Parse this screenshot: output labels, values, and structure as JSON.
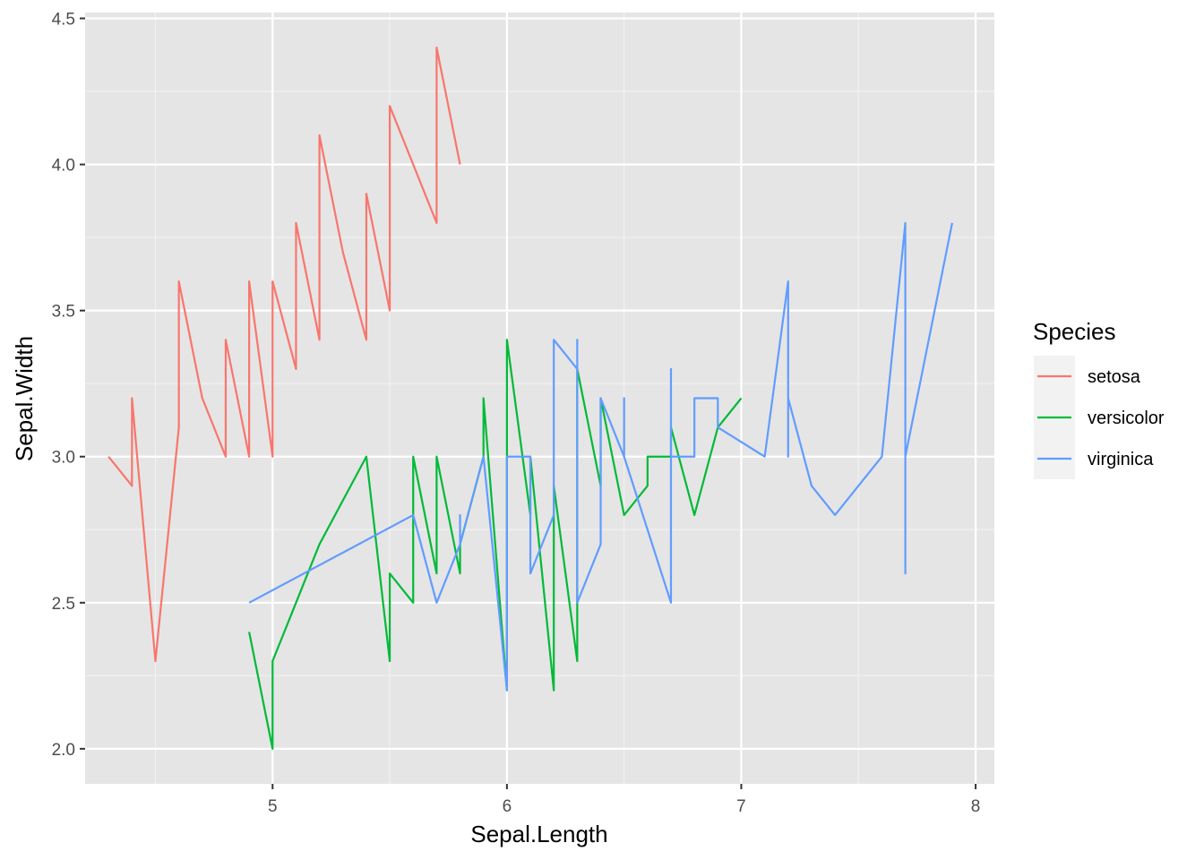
{
  "chart_data": {
    "type": "line",
    "title": "",
    "xlabel": "Sepal.Length",
    "ylabel": "Sepal.Width",
    "xlim": [
      4.2,
      8.08
    ],
    "ylim": [
      1.88,
      4.52
    ],
    "x_ticks": [
      5,
      6,
      7,
      8
    ],
    "x_tick_labels": [
      "5",
      "6",
      "7",
      "8"
    ],
    "y_ticks": [
      2.0,
      2.5,
      3.0,
      3.5,
      4.0,
      4.5
    ],
    "y_tick_labels": [
      "2.0",
      "2.5",
      "3.0",
      "3.5",
      "4.0",
      "4.5"
    ],
    "grid": true,
    "background": "#e5e5e5",
    "legend": {
      "title": "Species",
      "position": "right"
    },
    "series": [
      {
        "name": "setosa",
        "color": "#f8766d",
        "points": [
          [
            4.3,
            3.0
          ],
          [
            4.4,
            2.9
          ],
          [
            4.4,
            3.0
          ],
          [
            4.4,
            3.2
          ],
          [
            4.5,
            2.3
          ],
          [
            4.6,
            3.1
          ],
          [
            4.6,
            3.2
          ],
          [
            4.6,
            3.4
          ],
          [
            4.6,
            3.6
          ],
          [
            4.7,
            3.2
          ],
          [
            4.7,
            3.2
          ],
          [
            4.8,
            3.0
          ],
          [
            4.8,
            3.0
          ],
          [
            4.8,
            3.1
          ],
          [
            4.8,
            3.4
          ],
          [
            4.8,
            3.4
          ],
          [
            4.9,
            3.0
          ],
          [
            4.9,
            3.1
          ],
          [
            4.9,
            3.1
          ],
          [
            4.9,
            3.6
          ],
          [
            5.0,
            3.0
          ],
          [
            5.0,
            3.2
          ],
          [
            5.0,
            3.3
          ],
          [
            5.0,
            3.4
          ],
          [
            5.0,
            3.4
          ],
          [
            5.0,
            3.5
          ],
          [
            5.0,
            3.5
          ],
          [
            5.0,
            3.6
          ],
          [
            5.1,
            3.3
          ],
          [
            5.1,
            3.4
          ],
          [
            5.1,
            3.5
          ],
          [
            5.1,
            3.5
          ],
          [
            5.1,
            3.5
          ],
          [
            5.1,
            3.7
          ],
          [
            5.1,
            3.8
          ],
          [
            5.1,
            3.8
          ],
          [
            5.1,
            3.8
          ],
          [
            5.2,
            3.4
          ],
          [
            5.2,
            3.5
          ],
          [
            5.2,
            4.1
          ],
          [
            5.3,
            3.7
          ],
          [
            5.4,
            3.4
          ],
          [
            5.4,
            3.4
          ],
          [
            5.4,
            3.7
          ],
          [
            5.4,
            3.9
          ],
          [
            5.4,
            3.9
          ],
          [
            5.5,
            3.5
          ],
          [
            5.5,
            4.2
          ],
          [
            5.7,
            3.8
          ],
          [
            5.7,
            4.4
          ],
          [
            5.8,
            4.0
          ]
        ]
      },
      {
        "name": "versicolor",
        "color": "#00ba38",
        "points": [
          [
            4.9,
            2.4
          ],
          [
            5.0,
            2.0
          ],
          [
            5.0,
            2.3
          ],
          [
            5.1,
            2.5
          ],
          [
            5.2,
            2.7
          ],
          [
            5.4,
            3.0
          ],
          [
            5.5,
            2.3
          ],
          [
            5.5,
            2.4
          ],
          [
            5.5,
            2.4
          ],
          [
            5.5,
            2.5
          ],
          [
            5.5,
            2.6
          ],
          [
            5.6,
            2.5
          ],
          [
            5.6,
            2.7
          ],
          [
            5.6,
            2.9
          ],
          [
            5.6,
            3.0
          ],
          [
            5.6,
            3.0
          ],
          [
            5.7,
            2.6
          ],
          [
            5.7,
            2.8
          ],
          [
            5.7,
            2.9
          ],
          [
            5.7,
            2.9
          ],
          [
            5.7,
            3.0
          ],
          [
            5.8,
            2.6
          ],
          [
            5.8,
            2.7
          ],
          [
            5.8,
            2.7
          ],
          [
            5.9,
            3.0
          ],
          [
            5.9,
            3.2
          ],
          [
            6.0,
            2.2
          ],
          [
            6.0,
            2.7
          ],
          [
            6.0,
            2.9
          ],
          [
            6.0,
            3.4
          ],
          [
            6.1,
            2.8
          ],
          [
            6.1,
            2.8
          ],
          [
            6.1,
            2.9
          ],
          [
            6.1,
            3.0
          ],
          [
            6.2,
            2.2
          ],
          [
            6.2,
            2.9
          ],
          [
            6.3,
            2.3
          ],
          [
            6.3,
            2.5
          ],
          [
            6.3,
            3.3
          ],
          [
            6.4,
            2.9
          ],
          [
            6.4,
            3.2
          ],
          [
            6.5,
            2.8
          ],
          [
            6.6,
            2.9
          ],
          [
            6.6,
            3.0
          ],
          [
            6.7,
            3.0
          ],
          [
            6.7,
            3.1
          ],
          [
            6.7,
            3.1
          ],
          [
            6.8,
            2.8
          ],
          [
            6.9,
            3.1
          ],
          [
            7.0,
            3.2
          ]
        ]
      },
      {
        "name": "virginica",
        "color": "#619cff",
        "points": [
          [
            4.9,
            2.5
          ],
          [
            5.6,
            2.8
          ],
          [
            5.7,
            2.5
          ],
          [
            5.8,
            2.7
          ],
          [
            5.8,
            2.7
          ],
          [
            5.8,
            2.8
          ],
          [
            5.8,
            2.7
          ],
          [
            5.9,
            3.0
          ],
          [
            6.0,
            2.2
          ],
          [
            6.0,
            3.0
          ],
          [
            6.1,
            3.0
          ],
          [
            6.1,
            2.6
          ],
          [
            6.2,
            2.8
          ],
          [
            6.2,
            3.4
          ],
          [
            6.3,
            3.3
          ],
          [
            6.3,
            3.4
          ],
          [
            6.3,
            2.9
          ],
          [
            6.3,
            2.8
          ],
          [
            6.3,
            2.7
          ],
          [
            6.3,
            2.5
          ],
          [
            6.3,
            2.5
          ],
          [
            6.4,
            2.7
          ],
          [
            6.4,
            2.8
          ],
          [
            6.4,
            2.8
          ],
          [
            6.4,
            3.1
          ],
          [
            6.4,
            3.2
          ],
          [
            6.5,
            3.0
          ],
          [
            6.5,
            3.0
          ],
          [
            6.5,
            3.2
          ],
          [
            6.5,
            3.0
          ],
          [
            6.7,
            2.5
          ],
          [
            6.7,
            3.0
          ],
          [
            6.7,
            3.1
          ],
          [
            6.7,
            3.3
          ],
          [
            6.7,
            3.3
          ],
          [
            6.7,
            3.0
          ],
          [
            6.8,
            3.0
          ],
          [
            6.8,
            3.2
          ],
          [
            6.9,
            3.2
          ],
          [
            6.9,
            3.1
          ],
          [
            6.9,
            3.1
          ],
          [
            7.1,
            3.0
          ],
          [
            7.2,
            3.6
          ],
          [
            7.2,
            3.0
          ],
          [
            7.2,
            3.2
          ],
          [
            7.3,
            2.9
          ],
          [
            7.4,
            2.8
          ],
          [
            7.6,
            3.0
          ],
          [
            7.7,
            3.8
          ],
          [
            7.7,
            2.6
          ],
          [
            7.7,
            2.8
          ],
          [
            7.7,
            3.0
          ],
          [
            7.9,
            3.8
          ]
        ]
      }
    ]
  }
}
